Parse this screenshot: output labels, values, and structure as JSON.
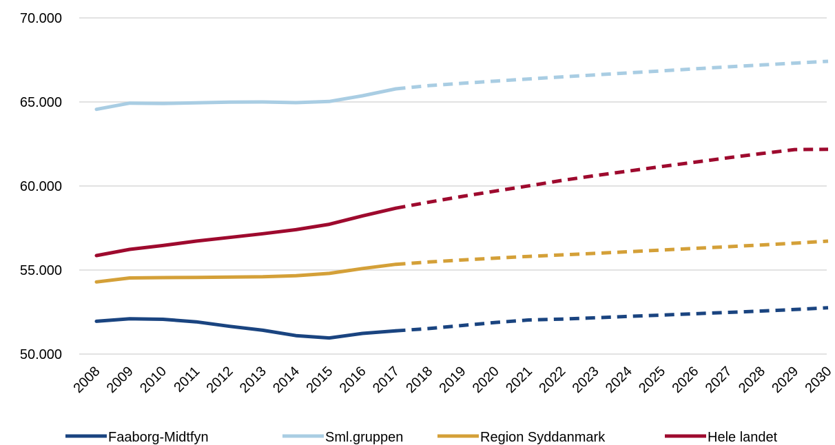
{
  "chart_data": {
    "type": "line",
    "title": "",
    "xlabel": "",
    "ylabel": "",
    "ylim": [
      50000,
      70000
    ],
    "ytick_step": 5000,
    "ytick_labels": [
      "50.000",
      "55.000",
      "60.000",
      "65.000",
      "70.000"
    ],
    "grid": true,
    "legend_position": "bottom",
    "categories": [
      "2008",
      "2009",
      "2010",
      "2011",
      "2012",
      "2013",
      "2014",
      "2015",
      "2016",
      "2017",
      "2018",
      "2019",
      "2020",
      "2021",
      "2022",
      "2023",
      "2024",
      "2025",
      "2026",
      "2027",
      "2028",
      "2029",
      "2030"
    ],
    "projection_starts_after": "2017",
    "series": [
      {
        "name": "Faaborg-Midtfyn",
        "color": "#1a4480",
        "values": [
          51950,
          52100,
          52070,
          51920,
          51650,
          51420,
          51100,
          50960,
          51230,
          51380,
          51520,
          51700,
          51880,
          52030,
          52080,
          52160,
          52240,
          52320,
          52400,
          52480,
          52560,
          52650,
          52760
        ]
      },
      {
        "name": "Sml.gruppen",
        "color": "#a9cde3",
        "values": [
          64560,
          64930,
          64910,
          64950,
          64990,
          65000,
          64960,
          65030,
          65370,
          65780,
          65970,
          66110,
          66240,
          66370,
          66490,
          66610,
          66730,
          66850,
          66970,
          67090,
          67200,
          67310,
          67420
        ]
      },
      {
        "name": "Region Syddanmark",
        "color": "#d4a038",
        "values": [
          54290,
          54530,
          54550,
          54560,
          54580,
          54600,
          54660,
          54800,
          55090,
          55340,
          55480,
          55600,
          55710,
          55810,
          55900,
          55990,
          56090,
          56190,
          56290,
          56390,
          56490,
          56600,
          56720
        ]
      },
      {
        "name": "Hele landet",
        "color": "#9e0a2e",
        "values": [
          55860,
          56230,
          56460,
          56720,
          56940,
          57160,
          57400,
          57720,
          58220,
          58680,
          59040,
          59380,
          59700,
          60010,
          60330,
          60620,
          60890,
          61160,
          61420,
          61680,
          61930,
          62170,
          62180
        ]
      }
    ]
  }
}
